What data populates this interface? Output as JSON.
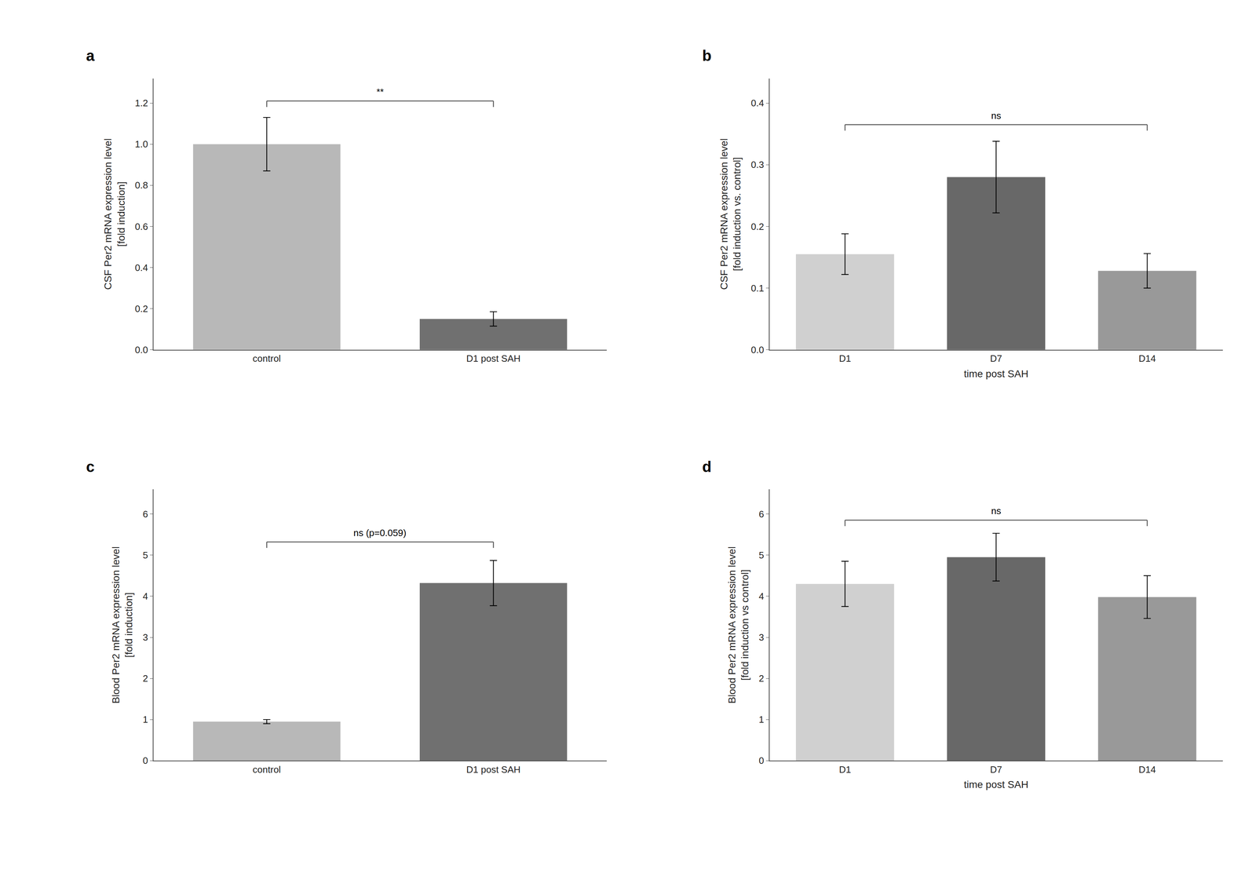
{
  "chart_data": [
    {
      "type": "bar",
      "title": "a",
      "categories": [
        "control",
        "D1 post SAH"
      ],
      "values": [
        1.0,
        0.15
      ],
      "errors": [
        0.13,
        0.035
      ],
      "colors": [
        "#b8b8b8",
        "#707070"
      ],
      "ylabel": "CSF Per2 mRNA expression level\n[fold induction]",
      "ylim": [
        0,
        1.32
      ],
      "yticks": [
        {
          "value": 0,
          "label": "0.0"
        },
        0.2,
        0.4,
        0.6,
        0.8,
        {
          "value": 1,
          "label": "1.0"
        },
        1.2
      ],
      "annotations": [
        {
          "text": "**",
          "x": [
            "control",
            "D1 post SAH"
          ],
          "y": 1.21
        }
      ],
      "grid": false
    },
    {
      "type": "bar",
      "title": "b",
      "categories": [
        "D1",
        "D7",
        "D14"
      ],
      "values": [
        0.155,
        0.28,
        0.128
      ],
      "errors": [
        0.033,
        0.058,
        0.028
      ],
      "colors": [
        "#d0d0d0",
        "#686868",
        "#999999"
      ],
      "ylabel": "CSF Per2 mRNA expression level\n[fold induction vs. control]",
      "xlabel": "time post SAH",
      "ylim": [
        0,
        0.44
      ],
      "yticks": [
        {
          "value": 0,
          "label": "0.0"
        },
        0.1,
        0.2,
        0.3,
        0.4
      ],
      "annotations": [
        {
          "text": "ns",
          "x": [
            "D1",
            "D14"
          ],
          "y": 0.365
        }
      ],
      "grid": false
    },
    {
      "type": "bar",
      "title": "c",
      "categories": [
        "control",
        "D1 post SAH"
      ],
      "values": [
        0.95,
        4.32
      ],
      "errors": [
        0.05,
        0.55
      ],
      "colors": [
        "#b8b8b8",
        "#707070"
      ],
      "ylabel": "Blood Per2 mRNA expression level\n[fold induction]",
      "ylim": [
        0,
        6.6
      ],
      "yticks": [
        0,
        1,
        2,
        3,
        4,
        5,
        6
      ],
      "annotations": [
        {
          "text": "ns (p=0.059)",
          "x": [
            "control",
            "D1 post SAH"
          ],
          "y": 5.32
        }
      ],
      "grid": false
    },
    {
      "type": "bar",
      "title": "d",
      "categories": [
        "D1",
        "D7",
        "D14"
      ],
      "values": [
        4.3,
        4.95,
        3.98
      ],
      "errors": [
        0.55,
        0.58,
        0.52
      ],
      "colors": [
        "#d0d0d0",
        "#686868",
        "#999999"
      ],
      "ylabel": "Blood Per2 mRNA expression level\n[fold induction vs control]",
      "xlabel": "time post SAH",
      "ylim": [
        0,
        6.6
      ],
      "yticks": [
        0,
        1,
        2,
        3,
        4,
        5,
        6
      ],
      "annotations": [
        {
          "text": "ns",
          "x": [
            "D1",
            "D14"
          ],
          "y": 5.85
        }
      ],
      "grid": false
    }
  ]
}
